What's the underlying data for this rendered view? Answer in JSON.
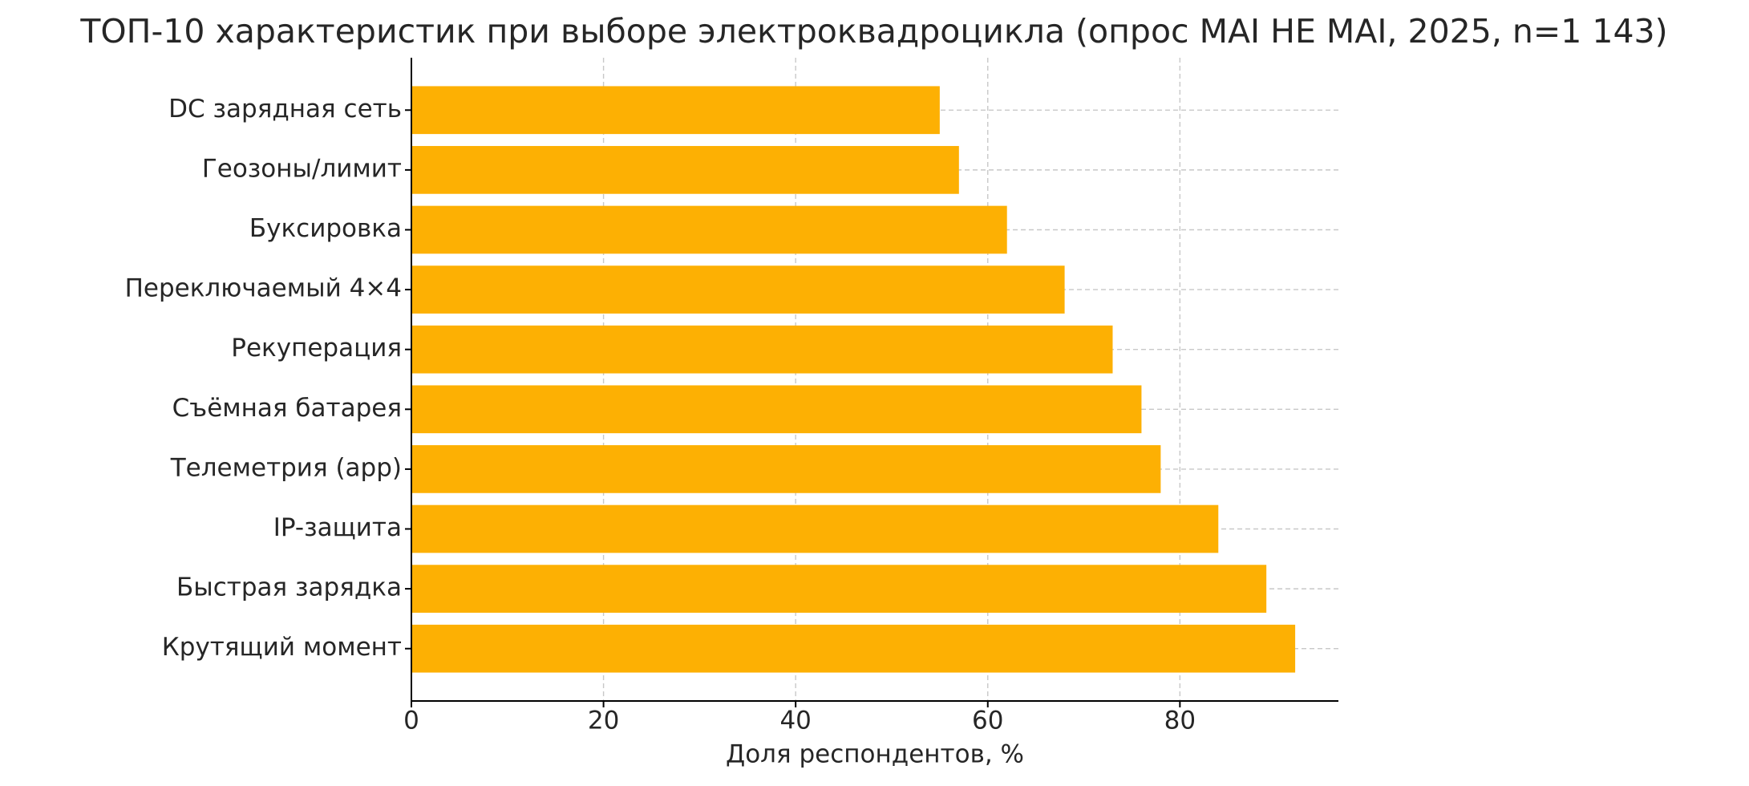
{
  "chart_data": {
    "type": "barh",
    "title": "ТОП-10 характеристик при выборе электроквадроцикла (опрос MAI HE MAI, 2025, n=1 143)",
    "x_label": "Доля респондентов, %",
    "categories": [
      "DC зарядная сеть",
      "Геозоны/лимит",
      "Буксировка",
      "Переключаемый 4×4",
      "Рекуперация",
      "Съёмная батарея",
      "Телеметрия (app)",
      "IP-защита",
      "Быстрая зарядка",
      "Крутящий момент"
    ],
    "values": [
      55,
      57,
      62,
      68,
      73,
      76,
      78,
      84,
      89,
      92
    ],
    "color": "#fdb003",
    "xlim": [
      0,
      96.5
    ],
    "xticks": [
      0,
      20,
      40,
      60,
      80
    ],
    "grid": true
  }
}
